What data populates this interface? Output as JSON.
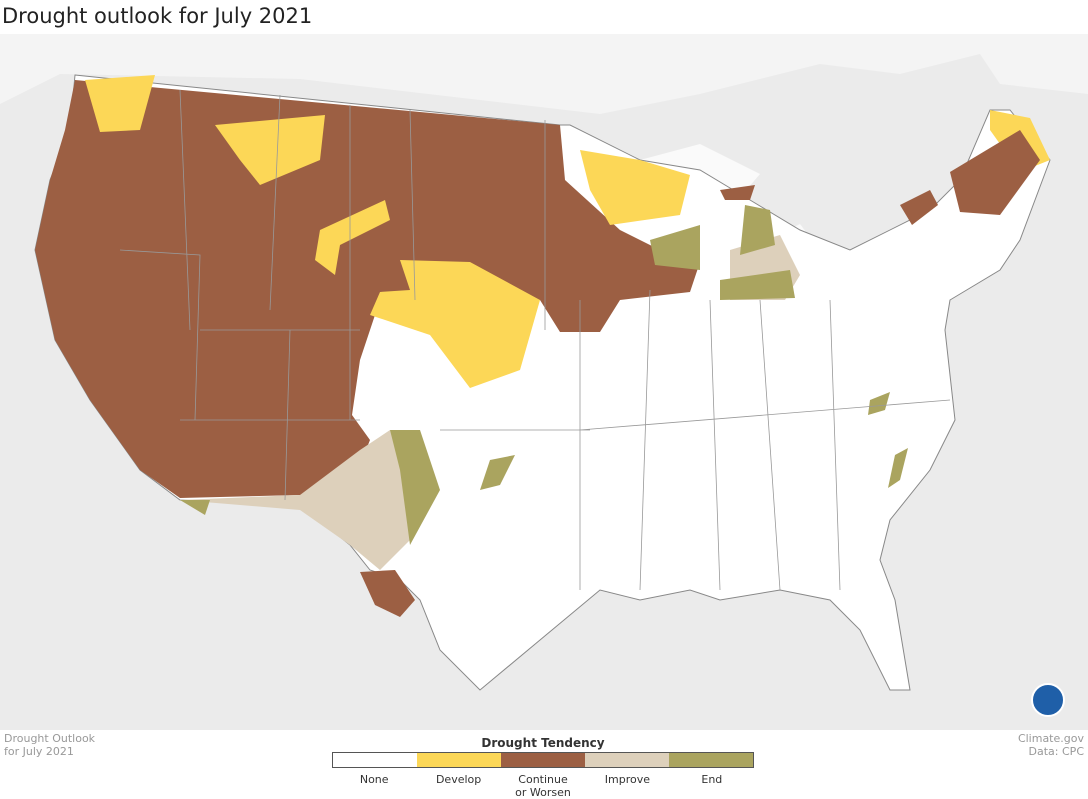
{
  "header": {
    "title": "Drought outlook for July 2021"
  },
  "footer": {
    "left": [
      "Drought Outlook",
      "for July 2021"
    ],
    "right": [
      "Climate.gov",
      "Data: CPC"
    ]
  },
  "legend": {
    "title": "Drought Tendency",
    "items": [
      {
        "label": "None",
        "color": "#ffffff"
      },
      {
        "label": "Develop",
        "color": "#fcd757"
      },
      {
        "label": "Continue or Worsen",
        "color": "#9c5f43"
      },
      {
        "label": "Improve",
        "color": "#ddd0bb"
      },
      {
        "label": "End",
        "color": "#aaa45f"
      }
    ]
  }
}
